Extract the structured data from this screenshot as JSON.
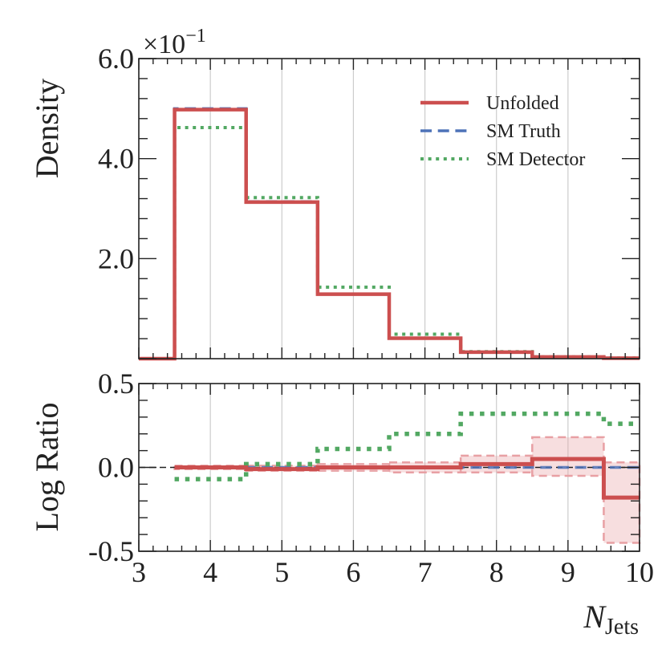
{
  "colors": {
    "unfolded": "#cc4f4f",
    "truth": "#4d72b8",
    "detector": "#52a862",
    "band": "#e8a0a4"
  },
  "chart_data": [
    {
      "type": "step",
      "panel": "top",
      "ylabel": "Density",
      "multiplier_label": "×10",
      "multiplier_exp": "−1",
      "ylim": [
        0,
        6.0
      ],
      "ytick_labels": [
        {
          "value": 2.0,
          "label": "2.0"
        },
        {
          "value": 4.0,
          "label": "4.0"
        },
        {
          "value": 6.0,
          "label": "6.0"
        }
      ],
      "xlim": [
        3,
        10
      ],
      "bin_edges": [
        3.5,
        4.5,
        5.5,
        6.5,
        7.5,
        8.5,
        9.5,
        10.5
      ],
      "series": [
        {
          "key": "unfolded",
          "name": "Unfolded",
          "style": "solid",
          "values": [
            4.98,
            3.13,
            1.29,
            0.41,
            0.13,
            0.035,
            0.01
          ]
        },
        {
          "key": "truth",
          "name": "SM Truth",
          "style": "dashed",
          "values": [
            5.0,
            3.14,
            1.29,
            0.41,
            0.13,
            0.033,
            0.012
          ]
        },
        {
          "key": "detector",
          "name": "SM Detector",
          "style": "dotted",
          "values": [
            4.62,
            3.22,
            1.43,
            0.49,
            0.14,
            0.037,
            0.014
          ]
        }
      ],
      "legend_position": "top-right"
    },
    {
      "type": "step",
      "panel": "bottom",
      "ylabel": "Log Ratio",
      "xlabel": "N",
      "xlabel_sub": "Jets",
      "ylim": [
        -0.5,
        0.5
      ],
      "ytick_labels": [
        {
          "value": -0.5,
          "label": "-0.5"
        },
        {
          "value": 0.0,
          "label": "0.0"
        },
        {
          "value": 0.5,
          "label": "0.5"
        }
      ],
      "xlim": [
        3,
        10
      ],
      "xtick_labels": [
        "3",
        "4",
        "5",
        "6",
        "7",
        "8",
        "9",
        "10"
      ],
      "bin_edges": [
        3.5,
        4.5,
        5.5,
        6.5,
        7.5,
        8.5,
        9.5,
        10.5
      ],
      "reference_line": 0.0,
      "series": [
        {
          "key": "truth",
          "name": "SM Truth",
          "style": "dashed",
          "values": [
            0,
            0,
            0,
            0,
            0,
            0,
            0
          ]
        },
        {
          "key": "detector",
          "name": "SM Detector",
          "style": "dotted",
          "values": [
            -0.07,
            0.02,
            0.11,
            0.2,
            0.32,
            0.32,
            0.26
          ]
        },
        {
          "key": "unfolded",
          "name": "Unfolded",
          "style": "solid",
          "values": [
            0.0,
            -0.01,
            0.0,
            0.0,
            0.02,
            0.05,
            -0.18
          ]
        }
      ],
      "uncertainty_band": {
        "key": "band",
        "lower": [
          -0.01,
          -0.02,
          -0.02,
          -0.03,
          -0.03,
          -0.05,
          -0.45
        ],
        "upper": [
          0.01,
          0.01,
          0.02,
          0.03,
          0.07,
          0.18,
          0.03
        ]
      }
    }
  ]
}
